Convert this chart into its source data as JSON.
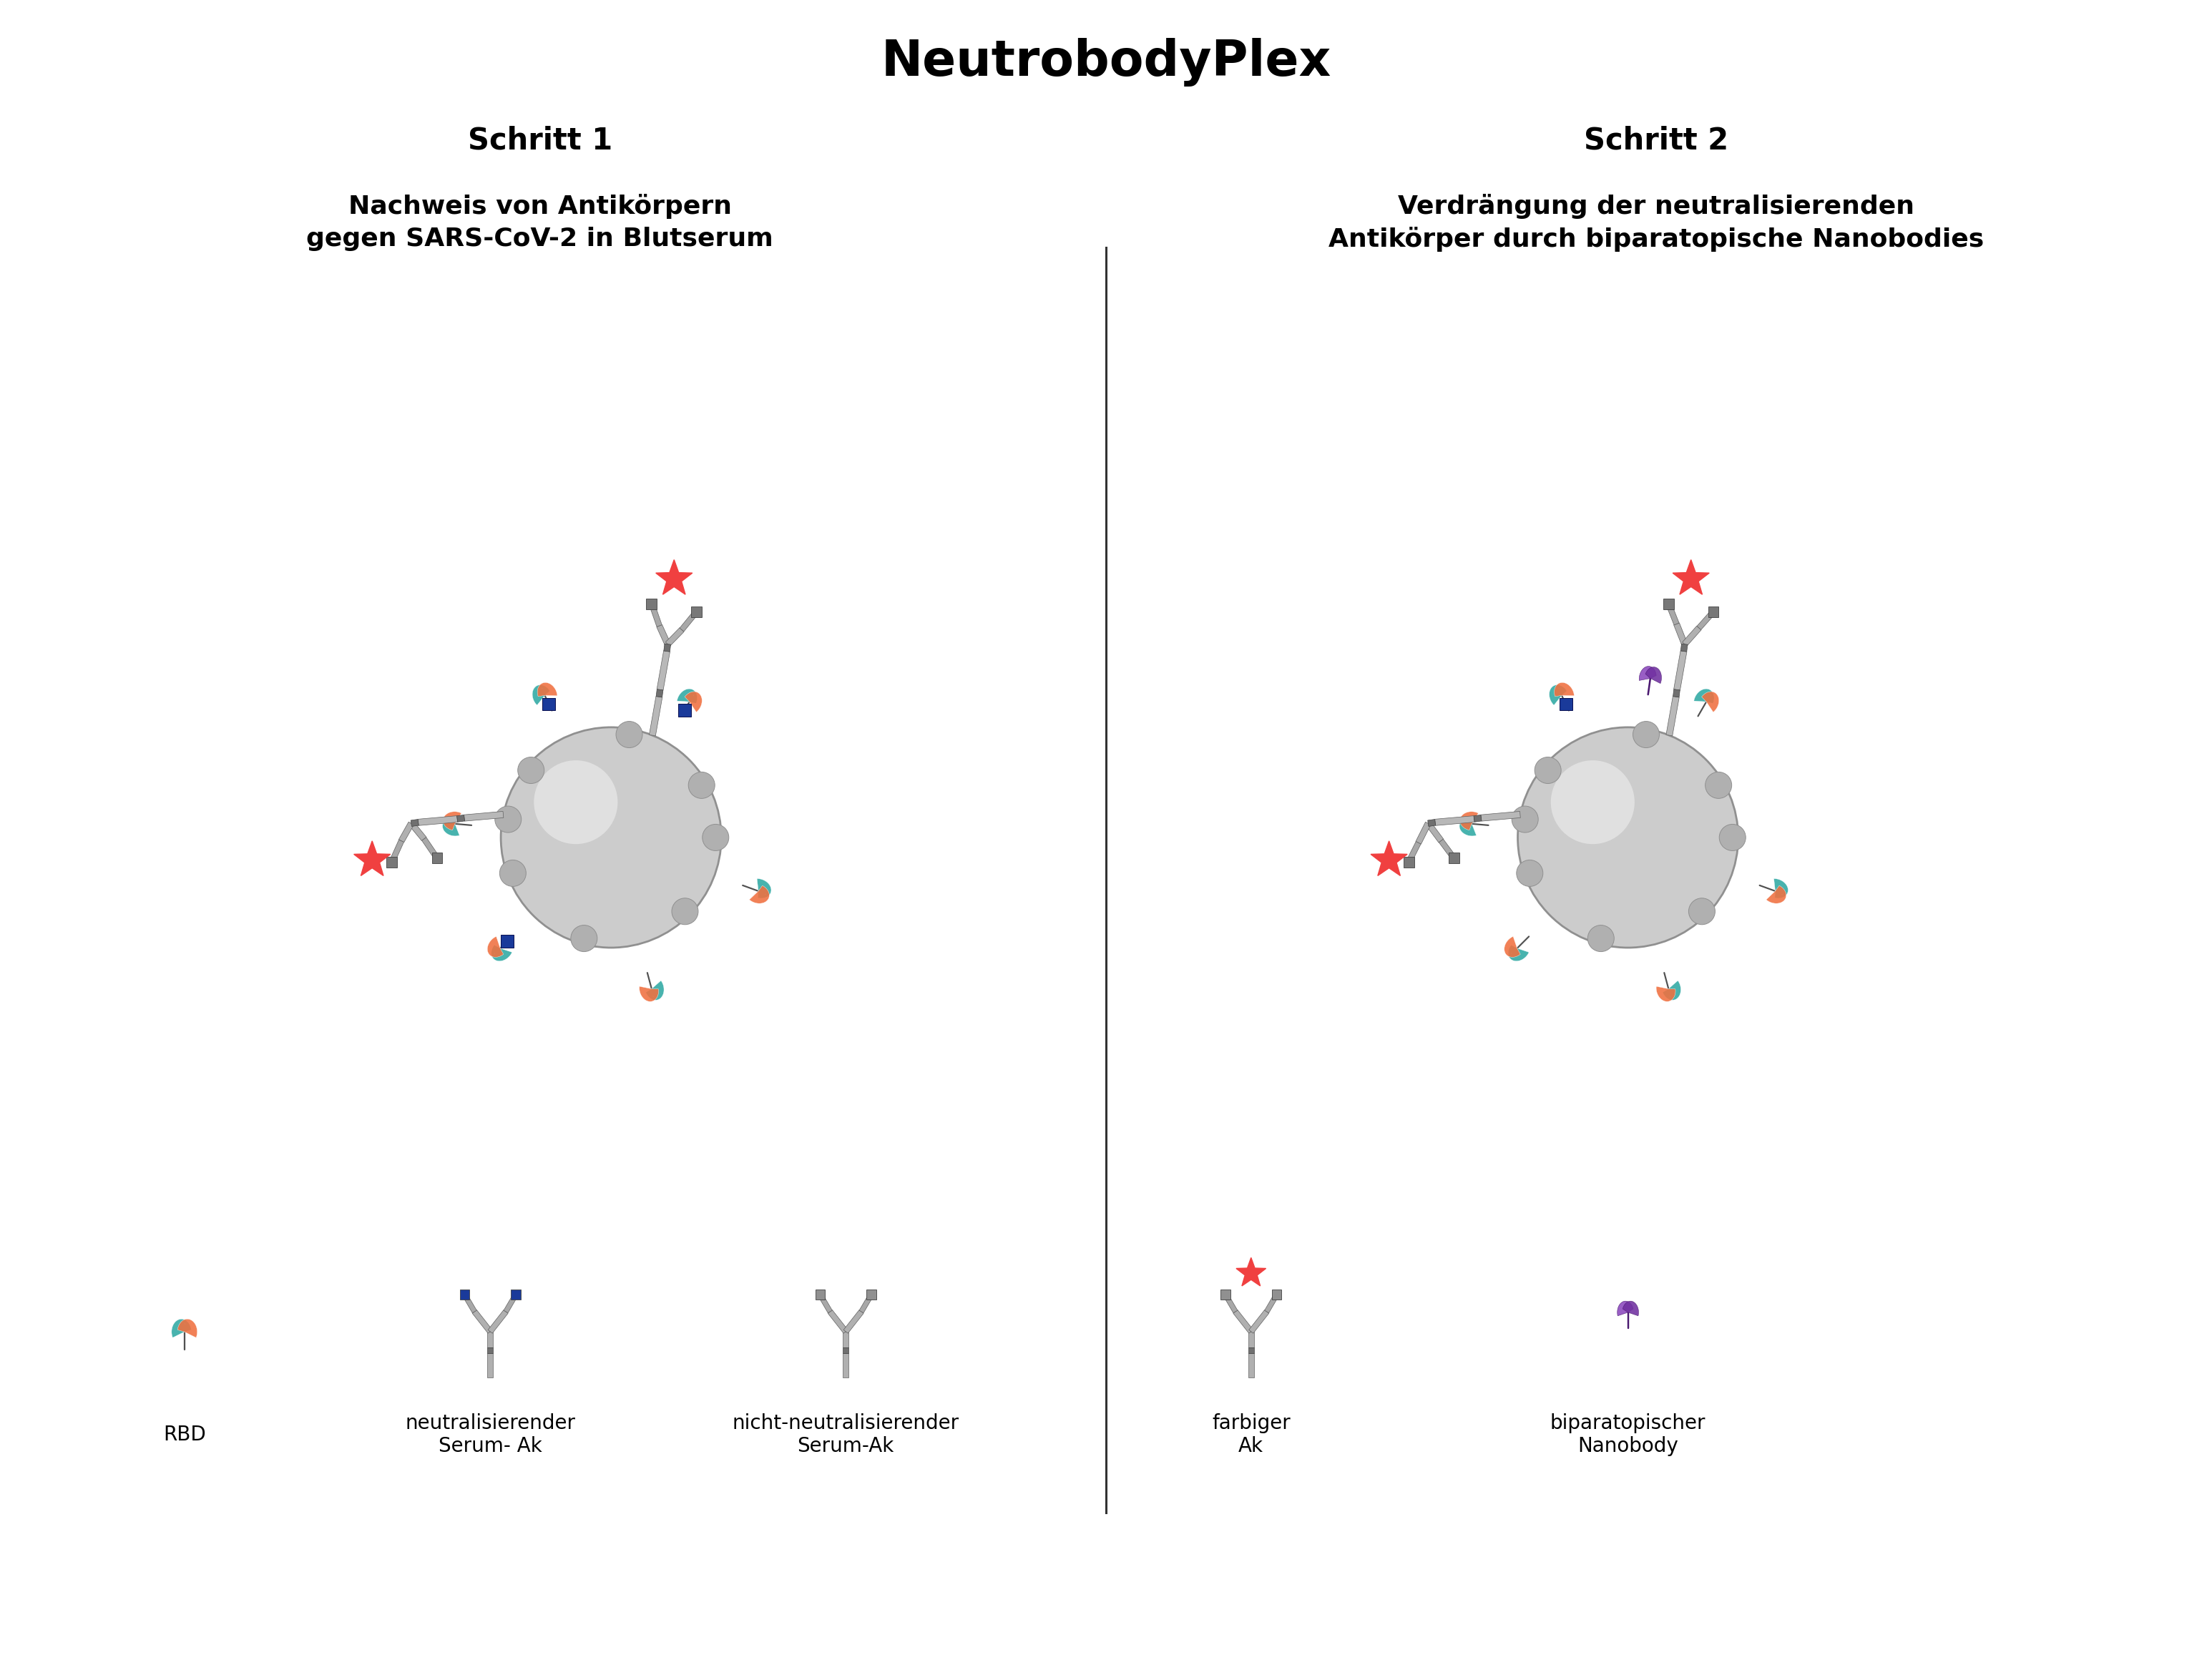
{
  "title": "NeutrobodyPlex",
  "schritt1_title": "Schritt 1",
  "schritt2_title": "Schritt 2",
  "schritt1_subtitle": "Nachweis von Antikörpern\ngegen SARS-CoV-2 in Blutserum",
  "schritt2_subtitle": "Verdrängung der neutralisierenden\nAntikörper durch biparatopische Nanobodies",
  "legend_labels": [
    "RBD",
    "neutralisierender\nSerum- Ak",
    "nicht-neutralisierender\nSerum-Ak",
    "farbiger\nAk",
    "biparatopischer\nNanobody"
  ],
  "bg_color": "#ffffff",
  "rbd_teal": "#3aada8",
  "rbd_orange": "#f07040",
  "arm_gray_light": "#b8b8b8",
  "arm_gray_mid": "#909090",
  "arm_gray_dark": "#606060",
  "arm_gray_darkest": "#404040",
  "blue_color": "#1a3a9a",
  "star_red": "#f04040",
  "purple_light": "#9050c0",
  "purple_dark": "#7030a0",
  "sphere_gray": "#cccccc",
  "sphere_edge": "#909090"
}
